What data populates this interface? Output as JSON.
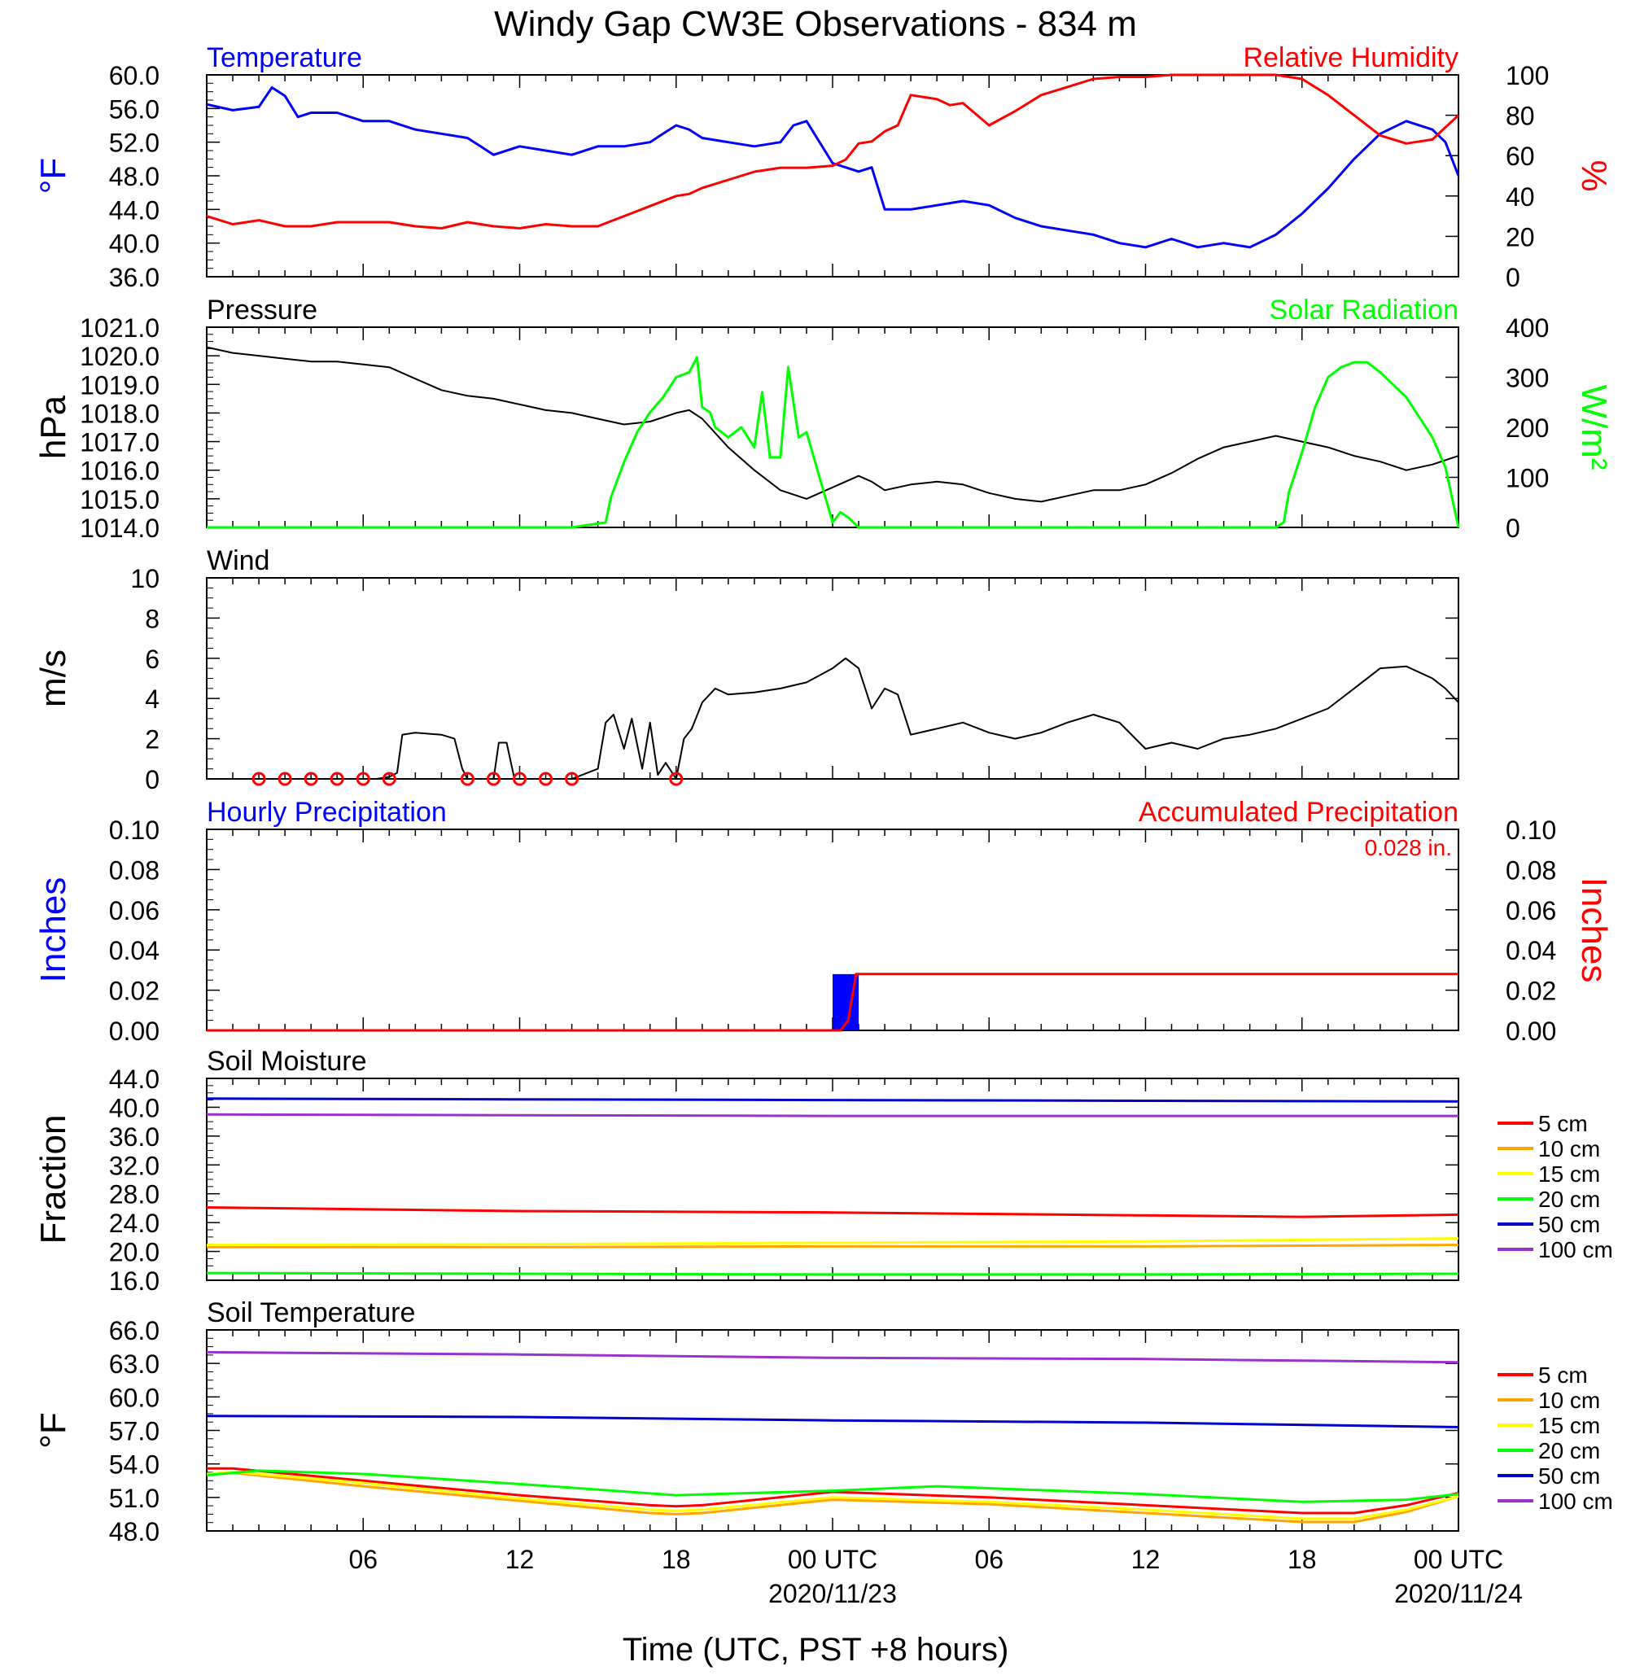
{
  "title": "Windy Gap CW3E Observations - 834 m",
  "xlabel": "Time (UTC, PST +8 hours)",
  "x_ticks": [
    {
      "hour": 6,
      "label": "06",
      "date": ""
    },
    {
      "hour": 12,
      "label": "12",
      "date": ""
    },
    {
      "hour": 18,
      "label": "18",
      "date": ""
    },
    {
      "hour": 24,
      "label": "00 UTC",
      "date": "2020/11/23"
    },
    {
      "hour": 30,
      "label": "06",
      "date": ""
    },
    {
      "hour": 36,
      "label": "12",
      "date": ""
    },
    {
      "hour": 42,
      "label": "18",
      "date": ""
    },
    {
      "hour": 48,
      "label": "00 UTC",
      "date": "2020/11/24"
    }
  ],
  "colors": {
    "blue": "#0000ff",
    "red": "#ff0000",
    "green": "#00ff00",
    "orange": "#ffa500",
    "yellow": "#ffff00",
    "navy": "#0000cc",
    "purple": "#9932cc",
    "black": "#000000"
  },
  "chart_data": [
    {
      "id": "temp_rh",
      "type": "line",
      "title": "",
      "label_left": "Temperature",
      "label_right": "Relative Humidity",
      "ylabel_left": "°F",
      "ylabel_right": "%",
      "xlim_hours": [
        0,
        48
      ],
      "ylim_left": [
        36,
        60
      ],
      "ylim_right": [
        0,
        100
      ],
      "yticks_left": [
        "36.0",
        "40.0",
        "44.0",
        "48.0",
        "52.0",
        "56.0",
        "60.0"
      ],
      "yticks_right": [
        "0",
        "20",
        "40",
        "60",
        "80",
        "100"
      ],
      "series": [
        {
          "name": "Temperature",
          "axis": "left",
          "color": "#0000ff",
          "x": [
            0,
            1,
            2,
            2.5,
            3,
            3.5,
            4,
            5,
            6,
            7,
            8,
            9,
            10,
            10.5,
            11,
            12,
            13,
            14,
            15,
            16,
            17,
            17.5,
            18,
            18.5,
            19,
            20,
            21,
            22,
            22.5,
            23,
            24,
            25,
            25.5,
            26,
            27,
            28,
            29,
            30,
            31,
            32,
            33,
            34,
            35,
            36,
            37,
            38,
            39,
            40,
            41,
            42,
            43,
            44,
            45,
            46,
            47,
            47.5,
            48
          ],
          "y": [
            56.5,
            55.8,
            56.2,
            58.5,
            57.5,
            55,
            55.5,
            55.5,
            54.5,
            54.5,
            53.5,
            53,
            52.5,
            51.5,
            50.5,
            51.5,
            51,
            50.5,
            51.5,
            51.5,
            52,
            53,
            54,
            53.5,
            52.5,
            52,
            51.5,
            52,
            54,
            54.5,
            49.5,
            48.5,
            49,
            44,
            44,
            44.5,
            45,
            44.5,
            43,
            42,
            41.5,
            41,
            40,
            39.5,
            40.5,
            39.5,
            40,
            39.5,
            41,
            43.5,
            46.5,
            50,
            53,
            54.5,
            53.5,
            52,
            48
          ]
        },
        {
          "name": "Relative Humidity",
          "axis": "right",
          "color": "#ff0000",
          "x": [
            0,
            1,
            2,
            3,
            4,
            5,
            6,
            7,
            8,
            9,
            10,
            11,
            12,
            13,
            14,
            15,
            16,
            17,
            18,
            18.5,
            19,
            20,
            21,
            22,
            23,
            24,
            24.5,
            25,
            25.5,
            26,
            26.5,
            27,
            28,
            28.5,
            29,
            30,
            31,
            32,
            33,
            34,
            35,
            36,
            37,
            38,
            39,
            40,
            41,
            42,
            43,
            44,
            45,
            46,
            47,
            48
          ],
          "y": [
            30,
            26,
            28,
            25,
            25,
            27,
            27,
            27,
            25,
            24,
            27,
            25,
            24,
            26,
            25,
            25,
            30,
            35,
            40,
            41,
            44,
            48,
            52,
            54,
            54,
            55,
            58,
            66,
            67,
            72,
            75,
            90,
            88,
            85,
            86,
            75,
            82,
            90,
            94,
            98,
            99,
            99,
            100,
            100,
            100,
            100,
            100,
            98,
            90,
            80,
            70,
            66,
            68,
            80
          ]
        }
      ]
    },
    {
      "id": "pressure_solar",
      "type": "line",
      "title": "",
      "label_left": "Pressure",
      "label_right": "Solar Radiation",
      "ylabel_left": "hPa",
      "ylabel_right": "W/m²",
      "xlim_hours": [
        0,
        48
      ],
      "ylim_left": [
        1014,
        1021
      ],
      "ylim_right": [
        0,
        400
      ],
      "yticks_left": [
        "1014.0",
        "1015.0",
        "1016.0",
        "1017.0",
        "1018.0",
        "1019.0",
        "1020.0",
        "1021.0"
      ],
      "yticks_right": [
        "0",
        "100",
        "200",
        "300",
        "400"
      ],
      "series": [
        {
          "name": "Pressure",
          "axis": "left",
          "color": "#000000",
          "x": [
            0,
            1,
            2,
            3,
            4,
            5,
            6,
            7,
            8,
            9,
            10,
            11,
            12,
            13,
            14,
            15,
            16,
            17,
            18,
            18.5,
            19,
            20,
            21,
            22,
            23,
            24,
            25,
            25.5,
            26,
            27,
            28,
            29,
            30,
            31,
            32,
            33,
            34,
            35,
            36,
            37,
            38,
            39,
            40,
            41,
            42,
            43,
            44,
            45,
            46,
            47,
            48
          ],
          "y": [
            1020.3,
            1020.1,
            1020.0,
            1019.9,
            1019.8,
            1019.8,
            1019.7,
            1019.6,
            1019.2,
            1018.8,
            1018.6,
            1018.5,
            1018.3,
            1018.1,
            1018.0,
            1017.8,
            1017.6,
            1017.7,
            1018.0,
            1018.1,
            1017.8,
            1016.8,
            1016.0,
            1015.3,
            1015.0,
            1015.4,
            1015.8,
            1015.6,
            1015.3,
            1015.5,
            1015.6,
            1015.5,
            1015.2,
            1015.0,
            1014.9,
            1015.1,
            1015.3,
            1015.3,
            1015.5,
            1015.9,
            1016.4,
            1016.8,
            1017.0,
            1017.2,
            1017.0,
            1016.8,
            1016.5,
            1016.3,
            1016.0,
            1016.2,
            1016.5
          ]
        },
        {
          "name": "Solar Radiation",
          "axis": "right",
          "color": "#00ff00",
          "x": [
            0,
            14,
            15.3,
            15.5,
            16,
            16.5,
            17,
            17.5,
            18,
            18.5,
            18.8,
            19,
            19.3,
            19.5,
            20,
            20.5,
            21,
            21.3,
            21.6,
            22,
            22.3,
            22.7,
            23,
            23.5,
            24,
            24.3,
            24.6,
            25,
            25.5,
            26,
            41,
            41.3,
            41.5,
            42,
            42.5,
            43,
            43.5,
            44,
            44.5,
            45,
            46,
            47,
            47.5,
            48
          ],
          "y": [
            0,
            0,
            10,
            60,
            130,
            190,
            230,
            260,
            300,
            310,
            340,
            240,
            230,
            200,
            180,
            200,
            160,
            270,
            140,
            140,
            320,
            180,
            190,
            100,
            10,
            30,
            20,
            0,
            0,
            0,
            0,
            10,
            70,
            150,
            240,
            300,
            320,
            330,
            330,
            310,
            260,
            180,
            120,
            0
          ]
        }
      ]
    },
    {
      "id": "wind",
      "type": "line",
      "title": "",
      "label_left": "Wind",
      "ylabel_left": "m/s",
      "xlim_hours": [
        0,
        48
      ],
      "ylim_left": [
        0,
        10
      ],
      "yticks_left": [
        "0",
        "2",
        "4",
        "6",
        "8",
        "10"
      ],
      "calm_markers_hours": [
        2,
        3,
        4,
        5,
        6,
        7,
        10,
        11,
        12,
        13,
        14,
        18
      ],
      "series": [
        {
          "name": "Wind speed",
          "axis": "left",
          "color": "#000000",
          "x": [
            0,
            6.5,
            7,
            7.3,
            7.5,
            8,
            9,
            9.5,
            9.8,
            10,
            11,
            11.2,
            11.5,
            11.8,
            12,
            14,
            15,
            15.3,
            15.6,
            16,
            16.3,
            16.7,
            17,
            17.3,
            17.6,
            18,
            18.3,
            18.6,
            19,
            19.5,
            20,
            21,
            22,
            23,
            24,
            24.5,
            25,
            25.5,
            26,
            26.5,
            27,
            28,
            29,
            30,
            31,
            32,
            33,
            34,
            35,
            36,
            37,
            38,
            39,
            40,
            41,
            42,
            43,
            44,
            45,
            46,
            47,
            47.5,
            48
          ],
          "y": [
            0,
            0,
            0.1,
            0.3,
            2.2,
            2.3,
            2.2,
            2.0,
            0.5,
            0,
            0,
            1.8,
            1.8,
            0,
            0,
            0,
            0.5,
            2.8,
            3.2,
            1.5,
            3.0,
            0.5,
            2.8,
            0.2,
            0.8,
            0,
            2.0,
            2.5,
            3.8,
            4.5,
            4.2,
            4.3,
            4.5,
            4.8,
            5.5,
            6.0,
            5.5,
            3.5,
            4.5,
            4.2,
            2.2,
            2.5,
            2.8,
            2.3,
            2.0,
            2.3,
            2.8,
            3.2,
            2.8,
            1.5,
            1.8,
            1.5,
            2.0,
            2.2,
            2.5,
            3.0,
            3.5,
            4.5,
            5.5,
            5.6,
            5.0,
            4.5,
            3.8
          ]
        }
      ]
    },
    {
      "id": "precip",
      "type": "bar",
      "title": "",
      "label_left": "Hourly Precipitation",
      "label_right": "Accumulated Precipitation",
      "accum_note": "0.028 in.",
      "ylabel_left": "Inches",
      "ylabel_right": "Inches",
      "xlim_hours": [
        0,
        48
      ],
      "ylim_left": [
        0,
        0.1
      ],
      "ylim_right": [
        0,
        0.1
      ],
      "yticks_left": [
        "0.00",
        "0.02",
        "0.04",
        "0.06",
        "0.08",
        "0.10"
      ],
      "yticks_right": [
        "0.00",
        "0.02",
        "0.04",
        "0.06",
        "0.08",
        "0.10"
      ],
      "bars": [
        {
          "hour_start": 24,
          "hour_end": 25,
          "value": 0.028
        }
      ],
      "series": [
        {
          "name": "Accumulated Precipitation",
          "axis": "right",
          "color": "#ff0000",
          "x": [
            0,
            24.3,
            24.6,
            24.9,
            48
          ],
          "y": [
            0,
            0,
            0.005,
            0.028,
            0.028
          ]
        }
      ]
    },
    {
      "id": "soil_moisture",
      "type": "line",
      "title": "",
      "label_left": "Soil Moisture",
      "ylabel_left": "Fraction",
      "xlim_hours": [
        0,
        48
      ],
      "ylim_left": [
        16,
        44
      ],
      "yticks_left": [
        "16.0",
        "20.0",
        "24.0",
        "28.0",
        "32.0",
        "36.0",
        "40.0",
        "44.0"
      ],
      "legend": [
        "5 cm",
        "10 cm",
        "15 cm",
        "20 cm",
        "50 cm",
        "100 cm"
      ],
      "series": [
        {
          "name": "5 cm",
          "color": "#ff0000",
          "x": [
            0,
            12,
            24,
            36,
            42,
            48
          ],
          "y": [
            26.1,
            25.6,
            25.4,
            25.0,
            24.8,
            25.1
          ]
        },
        {
          "name": "10 cm",
          "color": "#ffa500",
          "x": [
            0,
            12,
            24,
            36,
            48
          ],
          "y": [
            20.6,
            20.6,
            20.7,
            20.7,
            20.9
          ]
        },
        {
          "name": "15 cm",
          "color": "#ffff00",
          "x": [
            0,
            12,
            24,
            36,
            48
          ],
          "y": [
            20.9,
            21.0,
            21.2,
            21.4,
            21.8
          ]
        },
        {
          "name": "20 cm",
          "color": "#00ff00",
          "x": [
            0,
            12,
            24,
            36,
            48
          ],
          "y": [
            17.0,
            16.9,
            16.8,
            16.8,
            16.9
          ]
        },
        {
          "name": "50 cm",
          "color": "#0000cc",
          "x": [
            0,
            12,
            24,
            36,
            48
          ],
          "y": [
            41.2,
            41.1,
            41.0,
            40.9,
            40.8
          ]
        },
        {
          "name": "100 cm",
          "color": "#9932cc",
          "x": [
            0,
            12,
            24,
            36,
            48
          ],
          "y": [
            39.0,
            38.9,
            38.8,
            38.8,
            38.8
          ]
        }
      ]
    },
    {
      "id": "soil_temperature",
      "type": "line",
      "title": "",
      "label_left": "Soil Temperature",
      "ylabel_left": "°F",
      "xlim_hours": [
        0,
        48
      ],
      "ylim_left": [
        48,
        66
      ],
      "yticks_left": [
        "48.0",
        "51.0",
        "54.0",
        "57.0",
        "60.0",
        "63.0",
        "66.0"
      ],
      "legend": [
        "5 cm",
        "10 cm",
        "15 cm",
        "20 cm",
        "50 cm",
        "100 cm"
      ],
      "series": [
        {
          "name": "5 cm",
          "color": "#ff0000",
          "x": [
            0,
            1,
            6,
            12,
            17,
            18,
            19,
            24,
            30,
            36,
            42,
            44,
            46,
            48
          ],
          "y": [
            53.6,
            53.6,
            52.5,
            51.2,
            50.3,
            50.2,
            50.3,
            51.5,
            51.0,
            50.3,
            49.6,
            49.6,
            50.3,
            51.4
          ]
        },
        {
          "name": "10 cm",
          "color": "#ffa500",
          "x": [
            0,
            1,
            6,
            12,
            17,
            18,
            19,
            24,
            30,
            36,
            42,
            44,
            46,
            48
          ],
          "y": [
            53.0,
            53.2,
            52.0,
            50.7,
            49.6,
            49.5,
            49.6,
            50.8,
            50.4,
            49.6,
            48.8,
            48.8,
            49.7,
            51.1
          ]
        },
        {
          "name": "15 cm",
          "color": "#ffff00",
          "x": [
            0,
            1,
            6,
            12,
            17,
            18,
            19,
            24,
            30,
            36,
            42,
            44,
            46,
            48
          ],
          "y": [
            53.1,
            53.3,
            52.3,
            50.9,
            49.9,
            49.8,
            49.9,
            51.0,
            50.6,
            49.9,
            49.1,
            49.1,
            49.9,
            51.1
          ]
        },
        {
          "name": "20 cm",
          "color": "#00ff00",
          "x": [
            0,
            2,
            6,
            12,
            18,
            24,
            28,
            36,
            42,
            46,
            48
          ],
          "y": [
            53.0,
            53.4,
            53.1,
            52.2,
            51.2,
            51.6,
            52.0,
            51.3,
            50.6,
            50.8,
            51.3
          ]
        },
        {
          "name": "50 cm",
          "color": "#0000cc",
          "x": [
            0,
            12,
            24,
            36,
            48
          ],
          "y": [
            58.3,
            58.2,
            57.9,
            57.7,
            57.3
          ]
        },
        {
          "name": "100 cm",
          "color": "#9932cc",
          "x": [
            0,
            12,
            24,
            36,
            48
          ],
          "y": [
            64.0,
            63.8,
            63.5,
            63.4,
            63.1
          ]
        }
      ]
    }
  ]
}
